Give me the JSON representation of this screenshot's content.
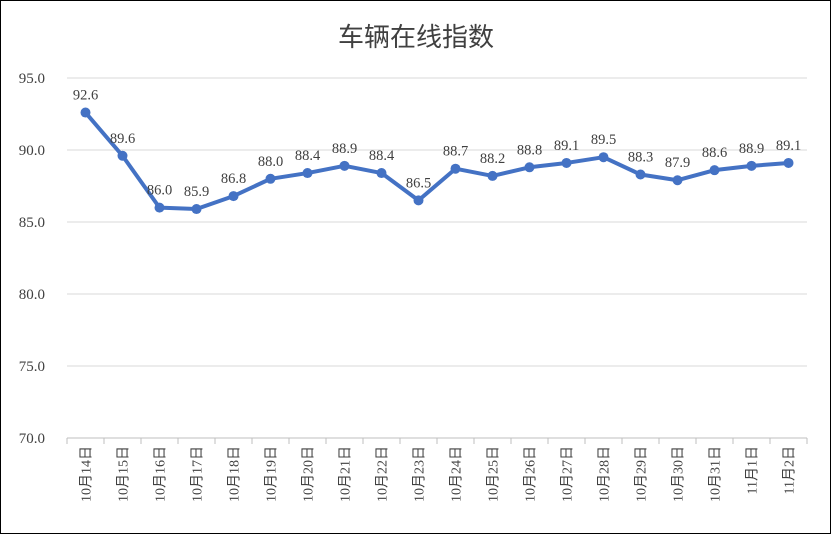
{
  "chart_data": {
    "type": "line",
    "title": "车辆在线指数",
    "xlabel": "",
    "ylabel": "",
    "ylim": [
      70,
      95
    ],
    "yticks": [
      "70.0",
      "75.0",
      "80.0",
      "85.0",
      "90.0",
      "95.0"
    ],
    "grid": true,
    "legend": "none",
    "line_color": "#4472C4",
    "categories": [
      "10月14日",
      "10月15日",
      "10月16日",
      "10月17日",
      "10月18日",
      "10月19日",
      "10月20日",
      "10月21日",
      "10月22日",
      "10月23日",
      "10月24日",
      "10月25日",
      "10月26日",
      "10月27日",
      "10月28日",
      "10月29日",
      "10月30日",
      "10月31日",
      "11月1日",
      "11月2日"
    ],
    "values": [
      92.6,
      89.6,
      86.0,
      85.9,
      86.8,
      88.0,
      88.4,
      88.9,
      88.4,
      86.5,
      88.7,
      88.2,
      88.8,
      89.1,
      89.5,
      88.3,
      87.9,
      88.6,
      88.9,
      89.1
    ],
    "data_labels": [
      "92.6",
      "89.6",
      "86.0",
      "85.9",
      "86.8",
      "88.0",
      "88.4",
      "88.9",
      "88.4",
      "86.5",
      "88.7",
      "88.2",
      "88.8",
      "89.1",
      "89.5",
      "88.3",
      "87.9",
      "88.6",
      "88.9",
      "89.1"
    ]
  }
}
